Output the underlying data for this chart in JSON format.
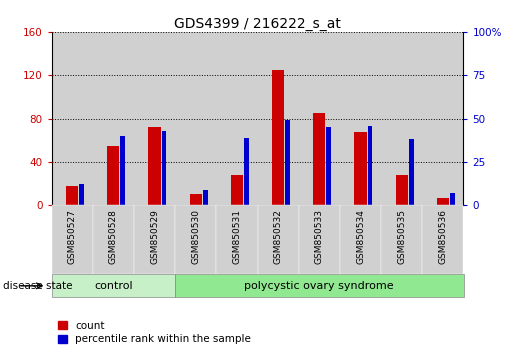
{
  "title": "GDS4399 / 216222_s_at",
  "samples": [
    "GSM850527",
    "GSM850528",
    "GSM850529",
    "GSM850530",
    "GSM850531",
    "GSM850532",
    "GSM850533",
    "GSM850534",
    "GSM850535",
    "GSM850536"
  ],
  "count_values": [
    18,
    55,
    72,
    10,
    28,
    125,
    85,
    68,
    28,
    7
  ],
  "percentile_values": [
    12.5,
    40,
    43,
    9,
    39,
    49,
    45,
    46,
    38,
    7
  ],
  "count_color": "#cc0000",
  "percentile_color": "#0000cc",
  "left_ylim": [
    0,
    160
  ],
  "right_ylim": [
    0,
    100
  ],
  "left_yticks": [
    0,
    40,
    80,
    120,
    160
  ],
  "right_yticks": [
    0,
    25,
    50,
    75,
    100
  ],
  "left_tick_labels": [
    "0",
    "40",
    "80",
    "120",
    "160"
  ],
  "right_tick_labels": [
    "0",
    "25",
    "50",
    "75",
    "100%"
  ],
  "bar_bg_color": "#d0d0d0",
  "chart_bg_color": "#ffffff",
  "grid_color": "#000000",
  "legend_count_label": "count",
  "legend_pct_label": "percentile rank within the sample",
  "disease_state_label": "disease state",
  "ctrl_color": "#c8f0c8",
  "poly_color": "#90e890",
  "title_fontsize": 10,
  "tick_fontsize": 7.5,
  "label_fontsize": 8,
  "red_bar_width": 0.3,
  "blue_bar_width": 0.12
}
